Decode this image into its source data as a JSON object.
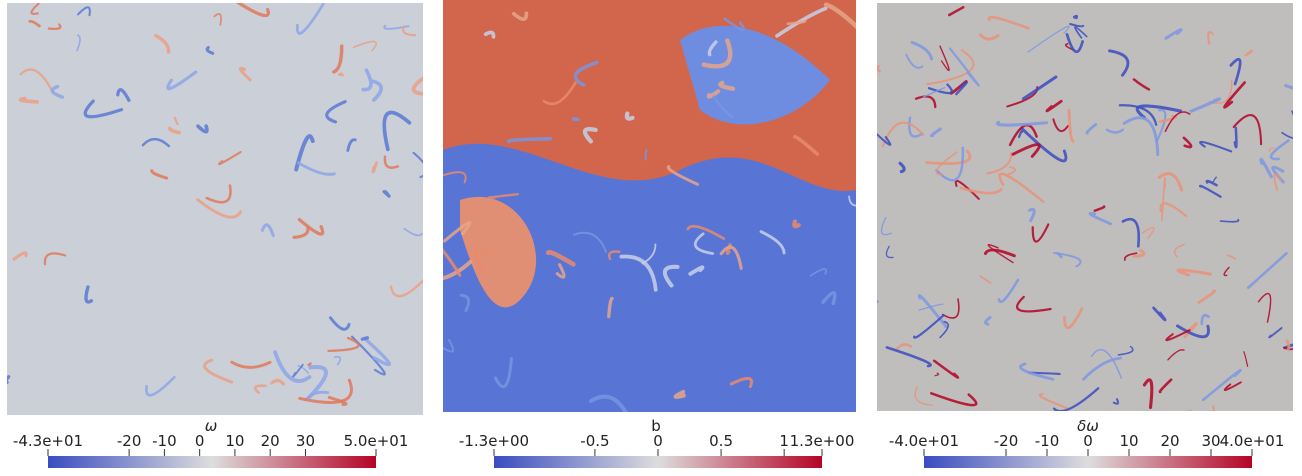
{
  "panels": [
    {
      "colorbar": {
        "title": "ω",
        "clim": [
          -43,
          50
        ],
        "ticks": [
          {
            "value": -43,
            "label": "-4.3e+01"
          },
          -20,
          -10,
          0,
          10,
          20,
          30,
          {
            "value": 50,
            "label": "5.0e+01"
          }
        ]
      }
    },
    {
      "colorbar": {
        "title": "b",
        "clim": [
          -1.3,
          1.3
        ],
        "ticks": [
          {
            "value": -1.3,
            "label": "-1.3e+00"
          },
          -0.5,
          0,
          0.5,
          1,
          {
            "value": 1.3,
            "label": "1.3e+00"
          }
        ]
      }
    },
    {
      "colorbar": {
        "title": "δω",
        "clim": [
          -40,
          40
        ],
        "ticks": [
          {
            "value": -40,
            "label": "-4.0e+01"
          },
          -20,
          -10,
          0,
          10,
          20,
          30,
          {
            "value": 40,
            "label": "4.0e+01"
          }
        ]
      }
    }
  ]
}
